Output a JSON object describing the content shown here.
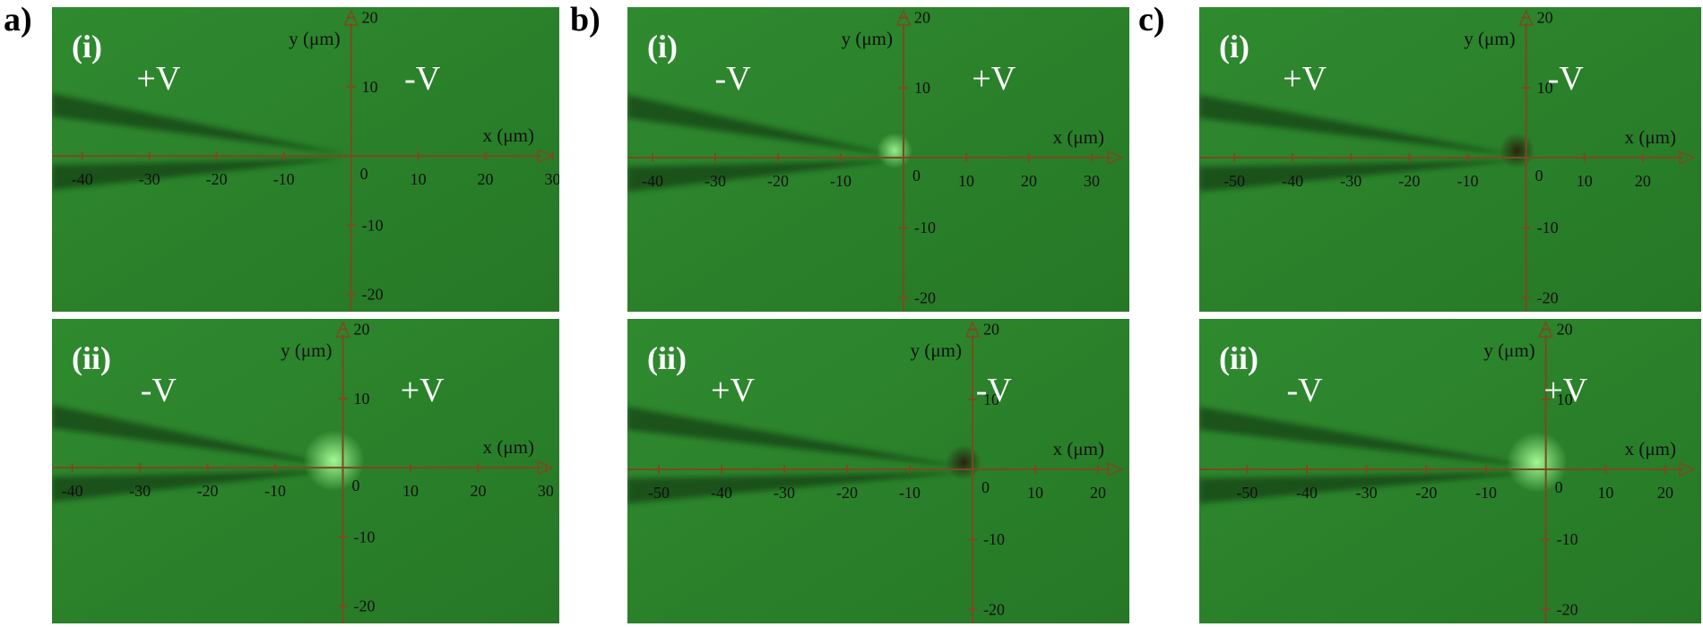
{
  "groups": [
    {
      "label": "a)",
      "panels": [
        {
          "label": "(i)",
          "left_text": "+V",
          "right_text": "-V",
          "x_axis_label": "x (μm)",
          "y_axis_label": "y (μm)",
          "x_ticks": [
            -40,
            -30,
            -20,
            -10,
            10,
            20,
            30
          ],
          "y_ticks": [
            20,
            10,
            -10,
            -20
          ],
          "x_range": [
            -44.5,
            31
          ],
          "y_range": [
            -22.5,
            21.5
          ],
          "spot": "none"
        },
        {
          "label": "(ii)",
          "left_text": "-V",
          "right_text": "+V",
          "x_axis_label": "x (μm)",
          "y_axis_label": "y (μm)",
          "x_ticks": [
            -40,
            -30,
            -20,
            -10,
            10,
            20,
            30
          ],
          "y_ticks": [
            20,
            10,
            -10,
            -20
          ],
          "x_range": [
            -43,
            32
          ],
          "y_range": [
            -22.5,
            21.5
          ],
          "spot": "bright"
        }
      ]
    },
    {
      "label": "b)",
      "panels": [
        {
          "label": "(i)",
          "left_text": "-V",
          "right_text": "+V",
          "x_axis_label": "x (μm)",
          "y_axis_label": "y (μm)",
          "x_ticks": [
            -40,
            -30,
            -20,
            -10,
            10,
            20,
            30
          ],
          "y_ticks": [
            20,
            10,
            -10,
            -20
          ],
          "x_range": [
            -44,
            36
          ],
          "y_range": [
            -22,
            21.5
          ],
          "spot": "dim"
        },
        {
          "label": "(ii)",
          "left_text": "+V",
          "right_text": "-V",
          "x_axis_label": "x (μm)",
          "y_axis_label": "y (μm)",
          "x_ticks": [
            -50,
            -40,
            -30,
            -20,
            -10,
            10,
            20
          ],
          "y_ticks": [
            20,
            10,
            -10,
            -20
          ],
          "x_range": [
            -55,
            25
          ],
          "y_range": [
            -22,
            21.5
          ],
          "spot": "dark"
        }
      ]
    },
    {
      "label": "c)",
      "panels": [
        {
          "label": "(i)",
          "left_text": "+V",
          "right_text": "-V",
          "x_axis_label": "x (μm)",
          "y_axis_label": "y (μm)",
          "x_ticks": [
            -50,
            -40,
            -30,
            -20,
            -10,
            10,
            20
          ],
          "y_ticks": [
            20,
            10,
            -10,
            -20
          ],
          "x_range": [
            -56,
            30
          ],
          "y_range": [
            -22,
            21.5
          ],
          "spot": "dark"
        },
        {
          "label": "(ii)",
          "left_text": "-V",
          "right_text": "+V",
          "x_axis_label": "x (μm)",
          "y_axis_label": "y (μm)",
          "x_ticks": [
            -50,
            -40,
            -30,
            -20,
            -10,
            10,
            20
          ],
          "y_ticks": [
            20,
            10,
            -10,
            -20
          ],
          "x_range": [
            -58,
            26
          ],
          "y_range": [
            -22,
            21.5
          ],
          "spot": "bright"
        }
      ]
    }
  ],
  "colors": {
    "background": "#2f8a2f",
    "background_dark": "#267826",
    "axis": "#7a4a22",
    "tick_text": "#101010",
    "label_text": "#ffffff",
    "group_label": "#000000"
  }
}
